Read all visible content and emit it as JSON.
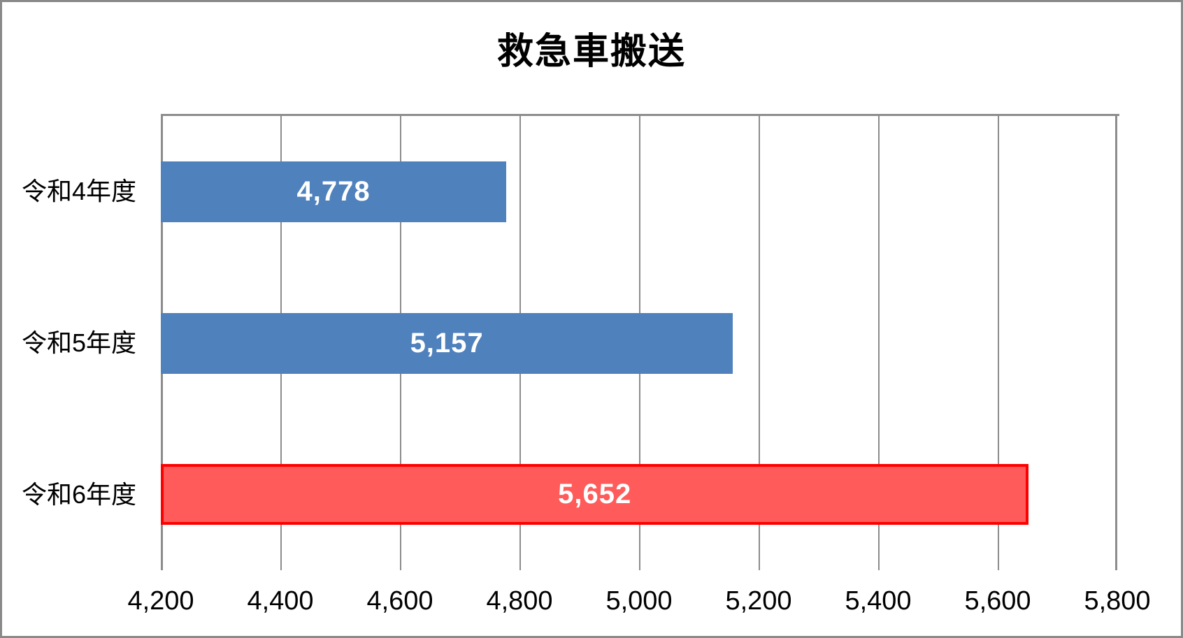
{
  "window": {
    "background": "#FFFFFF",
    "frame_color": "#898989"
  },
  "chart_data": {
    "type": "bar",
    "orientation": "horizontal",
    "title": "救急車搬送",
    "categories": [
      "令和4年度",
      "令和5年度",
      "令和6年度"
    ],
    "values": [
      4778,
      5157,
      5652
    ],
    "value_labels": [
      "4,778",
      "5,157",
      "5,652"
    ],
    "xlabel": "",
    "ylabel": "",
    "xlim": [
      4200,
      5800
    ],
    "x_tick_step": 200,
    "x_tick_labels": [
      "4,200",
      "4,400",
      "4,600",
      "4,800",
      "5,000",
      "5,200",
      "5,400",
      "5,600",
      "5,800"
    ],
    "grid": true,
    "legend": "none",
    "bar_fill_colors": [
      "#4F81BD",
      "#4F81BD",
      "#FF5B5B"
    ],
    "bar_border_colors": [
      "none",
      "none",
      "#FF0000"
    ],
    "value_label_color": "#FFFFFF",
    "gridline_color": "#8C8C8C",
    "text_color": "#000000"
  }
}
